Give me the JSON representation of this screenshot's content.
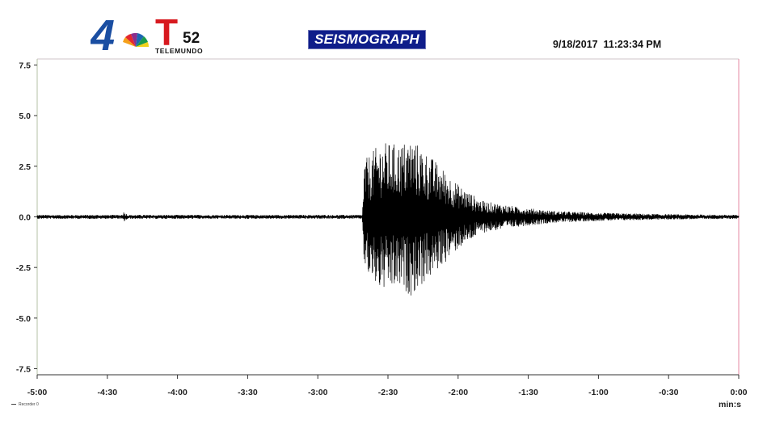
{
  "header": {
    "logo_number": "4",
    "logo_t": "T",
    "logo_channel": "52",
    "logo_network": "TELEMUNDO",
    "title": "SEISMOGRAPH",
    "timestamp": "9/18/2017  11:23:34 PM"
  },
  "legend": {
    "label": "Recorder 0"
  },
  "colors": {
    "title_bg": "#0f1d8a",
    "trace": "#000000",
    "axis_right": "#e48aa3",
    "logo_red": "#d7191f",
    "logo_blue": "#1a4ea2"
  },
  "chart_data": {
    "type": "line",
    "title": "SEISMOGRAPH",
    "xlabel": "min:s",
    "ylabel": "",
    "xlim": [
      -300,
      0
    ],
    "ylim": [
      -7.8,
      7.8
    ],
    "x_ticks": [
      {
        "v": -300,
        "label": "-5:00"
      },
      {
        "v": -270,
        "label": "-4:30"
      },
      {
        "v": -240,
        "label": "-4:00"
      },
      {
        "v": -210,
        "label": "-3:30"
      },
      {
        "v": -180,
        "label": "-3:00"
      },
      {
        "v": -150,
        "label": "-2:30"
      },
      {
        "v": -120,
        "label": "-2:00"
      },
      {
        "v": -90,
        "label": "-1:30"
      },
      {
        "v": -60,
        "label": "-1:00"
      },
      {
        "v": -30,
        "label": "-0:30"
      },
      {
        "v": 0,
        "label": "0:00"
      }
    ],
    "y_ticks": [
      {
        "v": 7.5,
        "label": "7.5"
      },
      {
        "v": 5.0,
        "label": "5.0"
      },
      {
        "v": 2.5,
        "label": "2.5"
      },
      {
        "v": 0.0,
        "label": "0.0"
      },
      {
        "v": -2.5,
        "label": "-2.5"
      },
      {
        "v": -5.0,
        "label": "-5.0"
      },
      {
        "v": -7.5,
        "label": "-7.5"
      }
    ],
    "grid": false,
    "series": [
      {
        "name": "Recorder 0",
        "envelope": [
          {
            "x": -300,
            "amp": 0.1
          },
          {
            "x": -264,
            "amp": 0.1
          },
          {
            "x": -263,
            "amp": 0.25
          },
          {
            "x": -261,
            "amp": 0.1
          },
          {
            "x": -161,
            "amp": 0.1
          },
          {
            "x": -160,
            "amp": 2.8
          },
          {
            "x": -153,
            "amp": 3.7
          },
          {
            "x": -145,
            "amp": 3.6
          },
          {
            "x": -140,
            "amp": 3.9
          },
          {
            "x": -130,
            "amp": 2.8
          },
          {
            "x": -120,
            "amp": 1.6
          },
          {
            "x": -110,
            "amp": 0.8
          },
          {
            "x": -95,
            "amp": 0.5
          },
          {
            "x": -80,
            "amp": 0.3
          },
          {
            "x": -60,
            "amp": 0.2
          },
          {
            "x": -30,
            "amp": 0.13
          },
          {
            "x": 0,
            "amp": 0.1
          }
        ]
      }
    ]
  }
}
